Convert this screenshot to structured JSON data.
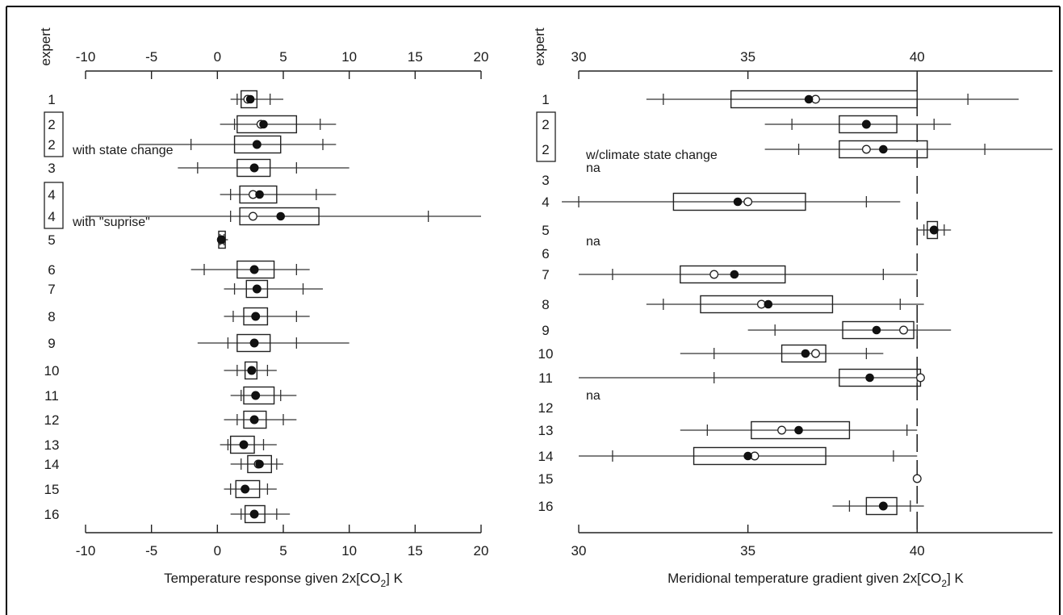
{
  "chart_data": [
    {
      "type": "boxplot",
      "id": "left",
      "xlabel": "Temperature response given 2x[CO",
      "xlabel_sub": "2",
      "xlabel_tail": "] K",
      "ylabel": "expert",
      "xlim": [
        -10,
        20
      ],
      "xticks": [
        -10,
        -5,
        0,
        5,
        10,
        15,
        20
      ],
      "rows": [
        {
          "label": "1",
          "note": "",
          "group": null,
          "lo": 1.0,
          "hi": 5.0,
          "ticks": [
            1.5,
            4.0
          ],
          "q1": 1.8,
          "q3": 3.0,
          "median": 2.5,
          "mean": 2.3
        },
        {
          "label": "2",
          "note": "",
          "group": "a",
          "lo": 0.2,
          "hi": 9.0,
          "ticks": [
            1.3,
            7.8
          ],
          "q1": 1.5,
          "q3": 6.0,
          "median": 3.5,
          "mean": 3.3
        },
        {
          "label": "2",
          "note": "with state change",
          "group": "a",
          "lo": -6.0,
          "hi": 9.0,
          "ticks": [
            -2.0,
            8.0
          ],
          "q1": 1.3,
          "q3": 4.8,
          "median": 3.0,
          "mean": 3.0
        },
        {
          "label": "3",
          "note": "",
          "group": null,
          "lo": -3.0,
          "hi": 10.0,
          "ticks": [
            -1.5,
            6.0
          ],
          "q1": 1.5,
          "q3": 4.0,
          "median": 2.8,
          "mean": 2.8
        },
        {
          "label": "4",
          "note": "",
          "group": "b",
          "lo": 0.2,
          "hi": 9.0,
          "ticks": [
            1.0,
            7.5
          ],
          "q1": 1.7,
          "q3": 4.5,
          "median": 3.2,
          "mean": 2.7
        },
        {
          "label": "4",
          "note": "with \"suprise\"",
          "group": "b",
          "lo": -10.0,
          "hi": 20.0,
          "ticks": [
            1.0,
            16.0
          ],
          "q1": 1.7,
          "q3": 7.7,
          "median": 4.8,
          "mean": 2.7
        },
        {
          "label": "5",
          "note": "",
          "group": null,
          "lo": 0.0,
          "hi": 0.8,
          "ticks": [
            0.2,
            0.5
          ],
          "q1": 0.1,
          "q3": 0.6,
          "median": 0.3,
          "mean": 0.3
        },
        {
          "label": "6",
          "note": "",
          "group": null,
          "lo": -2.0,
          "hi": 7.0,
          "ticks": [
            -1.0,
            6.0
          ],
          "q1": 1.5,
          "q3": 4.3,
          "median": 2.8,
          "mean": 2.8
        },
        {
          "label": "7",
          "note": "",
          "group": null,
          "lo": 0.5,
          "hi": 8.0,
          "ticks": [
            1.3,
            6.5
          ],
          "q1": 2.2,
          "q3": 3.8,
          "median": 3.0,
          "mean": 3.0
        },
        {
          "label": "8",
          "note": "",
          "group": null,
          "lo": 0.5,
          "hi": 7.0,
          "ticks": [
            1.2,
            6.0
          ],
          "q1": 2.0,
          "q3": 3.8,
          "median": 2.9,
          "mean": 2.9
        },
        {
          "label": "9",
          "note": "",
          "group": null,
          "lo": -1.5,
          "hi": 10.0,
          "ticks": [
            0.8,
            6.0
          ],
          "q1": 1.5,
          "q3": 4.0,
          "median": 2.8,
          "mean": 2.8
        },
        {
          "label": "10",
          "note": "",
          "group": null,
          "lo": 0.5,
          "hi": 4.5,
          "ticks": [
            1.5,
            3.8
          ],
          "q1": 2.1,
          "q3": 3.0,
          "median": 2.6,
          "mean": 2.6
        },
        {
          "label": "11",
          "note": "",
          "group": null,
          "lo": 1.0,
          "hi": 6.0,
          "ticks": [
            1.8,
            4.8
          ],
          "q1": 2.0,
          "q3": 4.3,
          "median": 2.9,
          "mean": 2.9
        },
        {
          "label": "12",
          "note": "",
          "group": null,
          "lo": 0.5,
          "hi": 6.0,
          "ticks": [
            1.5,
            5.0
          ],
          "q1": 2.0,
          "q3": 3.7,
          "median": 2.8,
          "mean": 2.8
        },
        {
          "label": "13",
          "note": "",
          "group": null,
          "lo": 0.2,
          "hi": 4.5,
          "ticks": [
            0.8,
            3.5
          ],
          "q1": 1.0,
          "q3": 2.8,
          "median": 2.0,
          "mean": 2.0
        },
        {
          "label": "14",
          "note": "",
          "group": null,
          "lo": 1.0,
          "hi": 5.0,
          "ticks": [
            1.8,
            4.5
          ],
          "q1": 2.3,
          "q3": 4.1,
          "median": 3.2,
          "mean": 3.1
        },
        {
          "label": "15",
          "note": "",
          "group": null,
          "lo": 0.5,
          "hi": 4.5,
          "ticks": [
            1.0,
            3.8
          ],
          "q1": 1.4,
          "q3": 3.2,
          "median": 2.1,
          "mean": 2.1
        },
        {
          "label": "16",
          "note": "",
          "group": null,
          "lo": 1.0,
          "hi": 5.5,
          "ticks": [
            1.8,
            4.5
          ],
          "q1": 2.1,
          "q3": 3.6,
          "median": 2.8,
          "mean": 2.8
        }
      ]
    },
    {
      "type": "boxplot",
      "id": "right",
      "xlabel": "Meridional temperature gradient given 2x[CO",
      "xlabel_sub": "2",
      "xlabel_tail": "] K",
      "ylabel": "expert",
      "xlim": [
        30,
        44
      ],
      "xticks": [
        30,
        35,
        40
      ],
      "reference_line": 40,
      "rows": [
        {
          "label": "1",
          "note": "",
          "group": null,
          "lo": 32.0,
          "hi": 43.0,
          "ticks": [
            32.5,
            41.5
          ],
          "q1": 34.5,
          "q3": 40.0,
          "median": 36.8,
          "mean": 37.0
        },
        {
          "label": "2",
          "note": "",
          "group": "a",
          "lo": 35.5,
          "hi": 41.0,
          "ticks": [
            36.3,
            40.5
          ],
          "q1": 37.7,
          "q3": 39.4,
          "median": 38.5,
          "mean": 38.5
        },
        {
          "label": "2",
          "note": "w/climate state change",
          "group": "a",
          "lo": 35.5,
          "hi": 44.0,
          "ticks": [
            36.5,
            42.0
          ],
          "q1": 37.7,
          "q3": 40.3,
          "median": 39.0,
          "mean": 38.5
        },
        {
          "label": "3",
          "note": "na",
          "group": null
        },
        {
          "label": "4",
          "note": "",
          "group": null,
          "lo": 29.5,
          "hi": 39.5,
          "ticks": [
            30.0,
            38.5
          ],
          "q1": 32.8,
          "q3": 36.7,
          "median": 34.7,
          "mean": 35.0
        },
        {
          "label": "5",
          "note": "",
          "group": null,
          "lo": 40.0,
          "hi": 41.0,
          "ticks": [
            40.2,
            40.8
          ],
          "q1": 40.3,
          "q3": 40.6,
          "median": 40.5,
          "mean": 40.5
        },
        {
          "label": "6",
          "note": "na",
          "group": null
        },
        {
          "label": "7",
          "note": "",
          "group": null,
          "lo": 30.0,
          "hi": 40.0,
          "ticks": [
            31.0,
            39.0
          ],
          "q1": 33.0,
          "q3": 36.1,
          "median": 34.6,
          "mean": 34.0
        },
        {
          "label": "8",
          "note": "",
          "group": null,
          "lo": 32.0,
          "hi": 40.2,
          "ticks": [
            32.5,
            39.5
          ],
          "q1": 33.6,
          "q3": 37.5,
          "median": 35.6,
          "mean": 35.4
        },
        {
          "label": "9",
          "note": "",
          "group": null,
          "lo": 35.0,
          "hi": 41.0,
          "ticks": [
            35.8,
            40.0
          ],
          "q1": 37.8,
          "q3": 39.9,
          "median": 38.8,
          "mean": 39.6
        },
        {
          "label": "10",
          "note": "",
          "group": null,
          "lo": 33.0,
          "hi": 39.0,
          "ticks": [
            34.0,
            38.5
          ],
          "q1": 36.0,
          "q3": 37.3,
          "median": 36.7,
          "mean": 37.0
        },
        {
          "label": "11",
          "note": "",
          "group": null,
          "lo": 30.0,
          "hi": 40.1,
          "ticks": [
            34.0,
            40.0
          ],
          "q1": 37.7,
          "q3": 40.1,
          "median": 38.6,
          "mean": 40.1
        },
        {
          "label": "12",
          "note": "na",
          "group": null
        },
        {
          "label": "13",
          "note": "",
          "group": null,
          "lo": 33.0,
          "hi": 40.0,
          "ticks": [
            33.8,
            39.7
          ],
          "q1": 35.1,
          "q3": 38.0,
          "median": 36.5,
          "mean": 36.0
        },
        {
          "label": "14",
          "note": "",
          "group": null,
          "lo": 30.0,
          "hi": 40.0,
          "ticks": [
            31.0,
            39.3
          ],
          "q1": 33.4,
          "q3": 37.3,
          "median": 35.0,
          "mean": 35.2
        },
        {
          "label": "15",
          "note": "",
          "group": null,
          "mean_only": true,
          "mean": 40.0
        },
        {
          "label": "16",
          "note": "",
          "group": null,
          "lo": 37.5,
          "hi": 40.2,
          "ticks": [
            38.0,
            39.8
          ],
          "q1": 38.5,
          "q3": 39.4,
          "median": 39.0,
          "mean": 39.0
        }
      ]
    }
  ]
}
